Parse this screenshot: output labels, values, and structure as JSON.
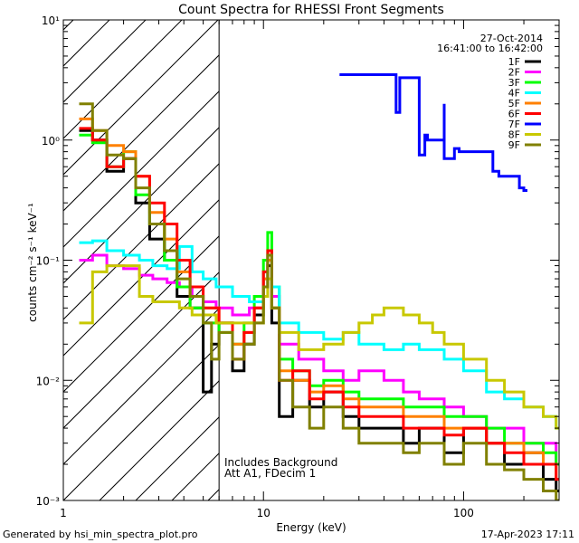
{
  "chart_data": {
    "type": "line",
    "title": "Count Spectra for RHESSI Front Segments",
    "xlabel": "Energy (keV)",
    "ylabel": "counts cm⁻² s⁻¹ keV⁻¹",
    "xscale": "log",
    "yscale": "log",
    "xlim": [
      1,
      300
    ],
    "ylim": [
      0.001,
      10
    ],
    "x_ticks": [
      {
        "value": 1,
        "label": "1"
      },
      {
        "value": 10,
        "label": "10"
      },
      {
        "value": 100,
        "label": "100"
      }
    ],
    "y_ticks": [
      {
        "value": 10,
        "label": "10¹"
      },
      {
        "value": 1,
        "label": "10⁰"
      },
      {
        "value": 0.1,
        "label": "10⁻¹"
      },
      {
        "value": 0.01,
        "label": "10⁻²"
      },
      {
        "value": 0.001,
        "label": "10⁻³"
      }
    ],
    "date": "27-Oct-2014",
    "time_range": "16:41:00 to 16:42:00",
    "notes": [
      "Includes Background",
      "Att A1, FDecim 1"
    ],
    "hatched_region": {
      "x_from": 1,
      "x_to": 6
    },
    "series": [
      {
        "name": "1F",
        "color": "#000000",
        "points": [
          [
            1.2,
            1.2
          ],
          [
            1.4,
            1.0
          ],
          [
            1.65,
            0.55
          ],
          [
            2.0,
            0.7
          ],
          [
            2.3,
            0.3
          ],
          [
            2.7,
            0.15
          ],
          [
            3.2,
            0.1
          ],
          [
            3.7,
            0.05
          ],
          [
            4.3,
            0.04
          ],
          [
            5.0,
            0.008
          ],
          [
            5.5,
            0.02
          ],
          [
            6.0,
            0.03
          ],
          [
            7.0,
            0.012
          ],
          [
            8.0,
            0.02
          ],
          [
            9.0,
            0.035
          ],
          [
            10.0,
            0.06
          ],
          [
            10.5,
            0.09
          ],
          [
            11.0,
            0.03
          ],
          [
            12.0,
            0.005
          ],
          [
            14.0,
            0.01
          ],
          [
            17.0,
            0.006
          ],
          [
            20.0,
            0.008
          ],
          [
            25.0,
            0.005
          ],
          [
            30.0,
            0.004
          ],
          [
            40.0,
            0.004
          ],
          [
            50.0,
            0.003
          ],
          [
            60.0,
            0.004
          ],
          [
            80.0,
            0.0025
          ],
          [
            100.0,
            0.004
          ],
          [
            130.0,
            0.003
          ],
          [
            160.0,
            0.002
          ],
          [
            200.0,
            0.0025
          ],
          [
            250.0,
            0.0015
          ],
          [
            290.0,
            0.0012
          ]
        ]
      },
      {
        "name": "2F",
        "color": "#ff00ff",
        "points": [
          [
            1.2,
            0.1
          ],
          [
            1.4,
            0.11
          ],
          [
            1.65,
            0.09
          ],
          [
            2.0,
            0.085
          ],
          [
            2.4,
            0.075
          ],
          [
            2.8,
            0.07
          ],
          [
            3.3,
            0.065
          ],
          [
            3.8,
            0.06
          ],
          [
            4.4,
            0.05
          ],
          [
            5.0,
            0.045
          ],
          [
            5.8,
            0.04
          ],
          [
            7.0,
            0.035
          ],
          [
            8.5,
            0.04
          ],
          [
            10.0,
            0.08
          ],
          [
            10.5,
            0.11
          ],
          [
            11.0,
            0.05
          ],
          [
            12.0,
            0.02
          ],
          [
            15.0,
            0.015
          ],
          [
            20.0,
            0.012
          ],
          [
            25.0,
            0.01
          ],
          [
            30.0,
            0.012
          ],
          [
            40.0,
            0.01
          ],
          [
            50.0,
            0.008
          ],
          [
            60.0,
            0.007
          ],
          [
            80.0,
            0.006
          ],
          [
            100.0,
            0.005
          ],
          [
            130.0,
            0.004
          ],
          [
            160.0,
            0.004
          ],
          [
            200.0,
            0.003
          ],
          [
            250.0,
            0.003
          ],
          [
            290.0,
            0.002
          ]
        ]
      },
      {
        "name": "3F",
        "color": "#00ff00",
        "points": [
          [
            1.2,
            1.1
          ],
          [
            1.4,
            0.95
          ],
          [
            1.65,
            0.6
          ],
          [
            2.0,
            0.8
          ],
          [
            2.3,
            0.35
          ],
          [
            2.7,
            0.2
          ],
          [
            3.2,
            0.1
          ],
          [
            3.7,
            0.06
          ],
          [
            4.3,
            0.04
          ],
          [
            5.0,
            0.03
          ],
          [
            6.0,
            0.025
          ],
          [
            7.0,
            0.02
          ],
          [
            8.0,
            0.03
          ],
          [
            9.0,
            0.05
          ],
          [
            10.0,
            0.1
          ],
          [
            10.5,
            0.17
          ],
          [
            11.0,
            0.06
          ],
          [
            12.0,
            0.015
          ],
          [
            14.0,
            0.012
          ],
          [
            17.0,
            0.009
          ],
          [
            20.0,
            0.01
          ],
          [
            25.0,
            0.008
          ],
          [
            30.0,
            0.007
          ],
          [
            40.0,
            0.007
          ],
          [
            50.0,
            0.006
          ],
          [
            60.0,
            0.006
          ],
          [
            80.0,
            0.005
          ],
          [
            100.0,
            0.005
          ],
          [
            130.0,
            0.004
          ],
          [
            160.0,
            0.003
          ],
          [
            200.0,
            0.003
          ],
          [
            250.0,
            0.0025
          ],
          [
            290.0,
            0.002
          ]
        ]
      },
      {
        "name": "4F",
        "color": "#00ffff",
        "points": [
          [
            1.2,
            0.14
          ],
          [
            1.4,
            0.145
          ],
          [
            1.65,
            0.12
          ],
          [
            2.0,
            0.11
          ],
          [
            2.4,
            0.1
          ],
          [
            2.8,
            0.09
          ],
          [
            3.3,
            0.085
          ],
          [
            3.8,
            0.13
          ],
          [
            4.4,
            0.08
          ],
          [
            5.0,
            0.07
          ],
          [
            5.8,
            0.06
          ],
          [
            7.0,
            0.05
          ],
          [
            8.5,
            0.045
          ],
          [
            10.0,
            0.07
          ],
          [
            10.5,
            0.1
          ],
          [
            11.0,
            0.06
          ],
          [
            12.0,
            0.03
          ],
          [
            15.0,
            0.025
          ],
          [
            20.0,
            0.022
          ],
          [
            25.0,
            0.025
          ],
          [
            30.0,
            0.02
          ],
          [
            40.0,
            0.018
          ],
          [
            50.0,
            0.02
          ],
          [
            60.0,
            0.018
          ],
          [
            80.0,
            0.015
          ],
          [
            100.0,
            0.012
          ],
          [
            130.0,
            0.008
          ],
          [
            160.0,
            0.007
          ],
          [
            200.0,
            0.006
          ],
          [
            250.0,
            0.005
          ],
          [
            290.0,
            0.004
          ]
        ]
      },
      {
        "name": "5F",
        "color": "#ff8000",
        "points": [
          [
            1.2,
            1.5
          ],
          [
            1.4,
            1.2
          ],
          [
            1.65,
            0.9
          ],
          [
            2.0,
            0.8
          ],
          [
            2.3,
            0.5
          ],
          [
            2.7,
            0.25
          ],
          [
            3.2,
            0.15
          ],
          [
            3.7,
            0.08
          ],
          [
            4.3,
            0.05
          ],
          [
            5.0,
            0.04
          ],
          [
            6.0,
            0.03
          ],
          [
            7.0,
            0.02
          ],
          [
            8.0,
            0.025
          ],
          [
            9.0,
            0.04
          ],
          [
            10.0,
            0.07
          ],
          [
            10.5,
            0.1
          ],
          [
            11.0,
            0.04
          ],
          [
            12.0,
            0.012
          ],
          [
            14.0,
            0.01
          ],
          [
            17.0,
            0.008
          ],
          [
            20.0,
            0.009
          ],
          [
            25.0,
            0.007
          ],
          [
            30.0,
            0.006
          ],
          [
            40.0,
            0.006
          ],
          [
            50.0,
            0.005
          ],
          [
            60.0,
            0.005
          ],
          [
            80.0,
            0.004
          ],
          [
            100.0,
            0.004
          ],
          [
            130.0,
            0.003
          ],
          [
            160.0,
            0.003
          ],
          [
            200.0,
            0.0025
          ],
          [
            250.0,
            0.002
          ],
          [
            290.0,
            0.0015
          ]
        ]
      },
      {
        "name": "6F",
        "color": "#ff0000",
        "points": [
          [
            1.2,
            1.25
          ],
          [
            1.4,
            1.0
          ],
          [
            1.65,
            0.6
          ],
          [
            2.0,
            0.7
          ],
          [
            2.3,
            0.5
          ],
          [
            2.7,
            0.3
          ],
          [
            3.2,
            0.2
          ],
          [
            3.7,
            0.1
          ],
          [
            4.3,
            0.06
          ],
          [
            5.0,
            0.04
          ],
          [
            6.0,
            0.03
          ],
          [
            7.0,
            0.015
          ],
          [
            8.0,
            0.025
          ],
          [
            9.0,
            0.04
          ],
          [
            10.0,
            0.08
          ],
          [
            10.5,
            0.12
          ],
          [
            11.0,
            0.04
          ],
          [
            12.0,
            0.01
          ],
          [
            14.0,
            0.012
          ],
          [
            17.0,
            0.007
          ],
          [
            20.0,
            0.008
          ],
          [
            25.0,
            0.006
          ],
          [
            30.0,
            0.005
          ],
          [
            40.0,
            0.005
          ],
          [
            50.0,
            0.004
          ],
          [
            60.0,
            0.004
          ],
          [
            80.0,
            0.0035
          ],
          [
            100.0,
            0.004
          ],
          [
            130.0,
            0.003
          ],
          [
            160.0,
            0.0025
          ],
          [
            200.0,
            0.002
          ],
          [
            250.0,
            0.002
          ],
          [
            290.0,
            0.0015
          ]
        ]
      },
      {
        "name": "7F",
        "color": "#0000ff",
        "points": [
          [
            24.0,
            3.5
          ],
          [
            46.0,
            1.7
          ],
          [
            48.0,
            3.3
          ],
          [
            60.0,
            3.3
          ],
          [
            60.0,
            0.75
          ],
          [
            64.0,
            1.1
          ],
          [
            66.0,
            1.0
          ],
          [
            80.0,
            2.0
          ],
          [
            80.0,
            0.7
          ],
          [
            90.0,
            0.85
          ],
          [
            95.0,
            0.8
          ],
          [
            140.0,
            0.55
          ],
          [
            150.0,
            0.5
          ],
          [
            190.0,
            0.4
          ],
          [
            200.0,
            0.38
          ]
        ]
      },
      {
        "name": "8F",
        "color": "#c8c800",
        "points": [
          [
            1.2,
            0.03
          ],
          [
            1.4,
            0.08
          ],
          [
            1.65,
            0.09
          ],
          [
            2.0,
            0.09
          ],
          [
            2.4,
            0.05
          ],
          [
            2.8,
            0.045
          ],
          [
            3.3,
            0.045
          ],
          [
            3.8,
            0.04
          ],
          [
            4.4,
            0.035
          ],
          [
            5.0,
            0.035
          ],
          [
            5.8,
            0.03
          ],
          [
            7.0,
            0.03
          ],
          [
            8.5,
            0.03
          ],
          [
            10.0,
            0.05
          ],
          [
            10.5,
            0.07
          ],
          [
            11.0,
            0.04
          ],
          [
            12.0,
            0.025
          ],
          [
            15.0,
            0.018
          ],
          [
            20.0,
            0.02
          ],
          [
            25.0,
            0.025
          ],
          [
            30.0,
            0.03
          ],
          [
            35.0,
            0.035
          ],
          [
            40.0,
            0.04
          ],
          [
            45.0,
            0.04
          ],
          [
            50.0,
            0.035
          ],
          [
            60.0,
            0.03
          ],
          [
            70.0,
            0.025
          ],
          [
            80.0,
            0.02
          ],
          [
            100.0,
            0.015
          ],
          [
            130.0,
            0.01
          ],
          [
            160.0,
            0.008
          ],
          [
            200.0,
            0.006
          ],
          [
            250.0,
            0.005
          ],
          [
            290.0,
            0.004
          ]
        ]
      },
      {
        "name": "9F",
        "color": "#808000",
        "points": [
          [
            1.2,
            2.0
          ],
          [
            1.4,
            1.2
          ],
          [
            1.65,
            0.75
          ],
          [
            2.0,
            0.7
          ],
          [
            2.3,
            0.4
          ],
          [
            2.7,
            0.2
          ],
          [
            3.2,
            0.12
          ],
          [
            3.7,
            0.07
          ],
          [
            4.3,
            0.05
          ],
          [
            5.0,
            0.03
          ],
          [
            5.5,
            0.015
          ],
          [
            6.0,
            0.025
          ],
          [
            7.0,
            0.015
          ],
          [
            8.0,
            0.02
          ],
          [
            9.0,
            0.03
          ],
          [
            10.0,
            0.06
          ],
          [
            10.5,
            0.11
          ],
          [
            11.0,
            0.04
          ],
          [
            12.0,
            0.01
          ],
          [
            14.0,
            0.006
          ],
          [
            17.0,
            0.004
          ],
          [
            20.0,
            0.006
          ],
          [
            25.0,
            0.004
          ],
          [
            30.0,
            0.003
          ],
          [
            40.0,
            0.003
          ],
          [
            50.0,
            0.0025
          ],
          [
            60.0,
            0.003
          ],
          [
            80.0,
            0.002
          ],
          [
            100.0,
            0.003
          ],
          [
            130.0,
            0.002
          ],
          [
            160.0,
            0.0018
          ],
          [
            200.0,
            0.0015
          ],
          [
            250.0,
            0.0012
          ],
          [
            290.0,
            0.001
          ]
        ]
      }
    ]
  },
  "footer": {
    "generated_by": "Generated by hsi_min_spectra_plot.pro",
    "timestamp": "17-Apr-2023 17:11"
  }
}
